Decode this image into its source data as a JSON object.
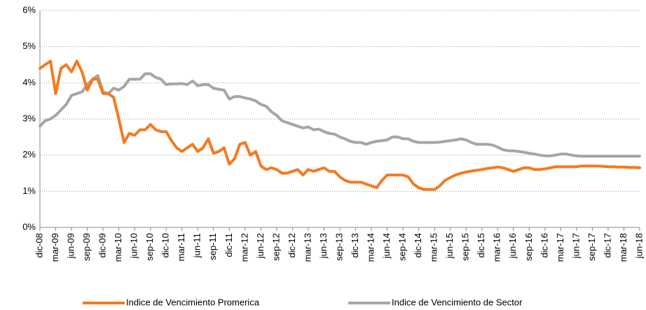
{
  "chart_data": {
    "type": "line",
    "categories": [
      "dic-08",
      null,
      null,
      "mar-09",
      null,
      null,
      "jun-09",
      null,
      null,
      "sep-09",
      null,
      null,
      "dic-09",
      null,
      null,
      "mar-10",
      null,
      null,
      "jun-10",
      null,
      null,
      "sep-10",
      null,
      null,
      "dic-10",
      null,
      null,
      "mar-11",
      null,
      null,
      "jun-11",
      null,
      null,
      "sep-11",
      null,
      null,
      "dic-11",
      null,
      null,
      "mar-12",
      null,
      null,
      "jun-12",
      null,
      null,
      "sep-12",
      null,
      null,
      "dic-12",
      null,
      null,
      "mar-13",
      null,
      null,
      "jun-13",
      null,
      null,
      "sep-13",
      null,
      null,
      "dic-13",
      null,
      null,
      "mar-14",
      null,
      null,
      "jun-14",
      null,
      null,
      "sep-14",
      null,
      null,
      "dic-14",
      null,
      null,
      "mar-15",
      null,
      null,
      "jun-15",
      null,
      null,
      "sep-15",
      null,
      null,
      "dic-15",
      null,
      null,
      "mar-16",
      null,
      null,
      "jun-16",
      null,
      null,
      "sep-16",
      null,
      null,
      "dic-16",
      null,
      null,
      "mar-17",
      null,
      null,
      "jun-17",
      null,
      null,
      "sep-17",
      null,
      null,
      "dic-17",
      null,
      null,
      "mar-18",
      null,
      null,
      "jun-18"
    ],
    "series": [
      {
        "name": "Indice de Vencimiento Promerica",
        "color": "#f47a20",
        "values": [
          4.4,
          4.5,
          4.6,
          3.7,
          4.4,
          4.5,
          4.3,
          4.6,
          4.3,
          3.8,
          4.1,
          4.1,
          3.7,
          3.7,
          3.6,
          3.0,
          2.35,
          2.6,
          2.55,
          2.7,
          2.7,
          2.85,
          2.7,
          2.65,
          2.65,
          2.4,
          2.2,
          2.1,
          2.2,
          2.3,
          2.1,
          2.2,
          2.45,
          2.05,
          2.1,
          2.2,
          1.75,
          1.9,
          2.3,
          2.35,
          2.0,
          2.1,
          1.7,
          1.6,
          1.65,
          1.6,
          1.5,
          1.5,
          1.55,
          1.6,
          1.45,
          1.6,
          1.55,
          1.6,
          1.65,
          1.55,
          1.55,
          1.4,
          1.3,
          1.25,
          1.25,
          1.25,
          1.2,
          1.15,
          1.1,
          1.3,
          1.45,
          1.45,
          1.45,
          1.45,
          1.4,
          1.2,
          1.1,
          1.05,
          1.05,
          1.05,
          1.15,
          1.3,
          1.38,
          1.45,
          1.5,
          1.53,
          1.56,
          1.58,
          1.6,
          1.63,
          1.65,
          1.67,
          1.65,
          1.6,
          1.55,
          1.6,
          1.65,
          1.65,
          1.6,
          1.6,
          1.62,
          1.65,
          1.68,
          1.68,
          1.68,
          1.68,
          1.68,
          1.7,
          1.7,
          1.7,
          1.7,
          1.69,
          1.68,
          1.68,
          1.67,
          1.67,
          1.66,
          1.66,
          1.65
        ]
      },
      {
        "name": "Indice de Vencimiento de Sector",
        "color": "#a6a6a6",
        "values": [
          2.8,
          2.95,
          3.0,
          3.1,
          3.25,
          3.4,
          3.65,
          3.7,
          3.75,
          3.95,
          4.1,
          4.2,
          3.75,
          3.7,
          3.85,
          3.8,
          3.9,
          4.1,
          4.1,
          4.1,
          4.25,
          4.25,
          4.15,
          4.1,
          3.95,
          3.97,
          3.97,
          3.98,
          3.95,
          4.05,
          3.92,
          3.95,
          3.95,
          3.85,
          3.82,
          3.8,
          3.55,
          3.62,
          3.62,
          3.58,
          3.55,
          3.5,
          3.4,
          3.35,
          3.2,
          3.1,
          2.95,
          2.9,
          2.85,
          2.8,
          2.75,
          2.78,
          2.7,
          2.72,
          2.65,
          2.6,
          2.58,
          2.5,
          2.45,
          2.38,
          2.35,
          2.35,
          2.3,
          2.35,
          2.38,
          2.4,
          2.42,
          2.5,
          2.5,
          2.45,
          2.45,
          2.38,
          2.35,
          2.35,
          2.35,
          2.35,
          2.36,
          2.38,
          2.4,
          2.42,
          2.45,
          2.42,
          2.35,
          2.3,
          2.3,
          2.3,
          2.28,
          2.22,
          2.15,
          2.12,
          2.12,
          2.1,
          2.08,
          2.05,
          2.03,
          2.0,
          1.98,
          1.98,
          2.0,
          2.03,
          2.03,
          2.0,
          1.98,
          1.97,
          1.97,
          1.97,
          1.97,
          1.97,
          1.97,
          1.97,
          1.97,
          1.97,
          1.97,
          1.97,
          1.97
        ]
      }
    ],
    "ylim": [
      0,
      6
    ],
    "yticks": [
      {
        "value": 0,
        "label": "0%"
      },
      {
        "value": 1,
        "label": "1%"
      },
      {
        "value": 2,
        "label": "2%"
      },
      {
        "value": 3,
        "label": "3%"
      },
      {
        "value": 4,
        "label": "4%"
      },
      {
        "value": 5,
        "label": "5%"
      },
      {
        "value": 6,
        "label": "6%"
      }
    ],
    "grid": true,
    "legend": "bottom"
  }
}
